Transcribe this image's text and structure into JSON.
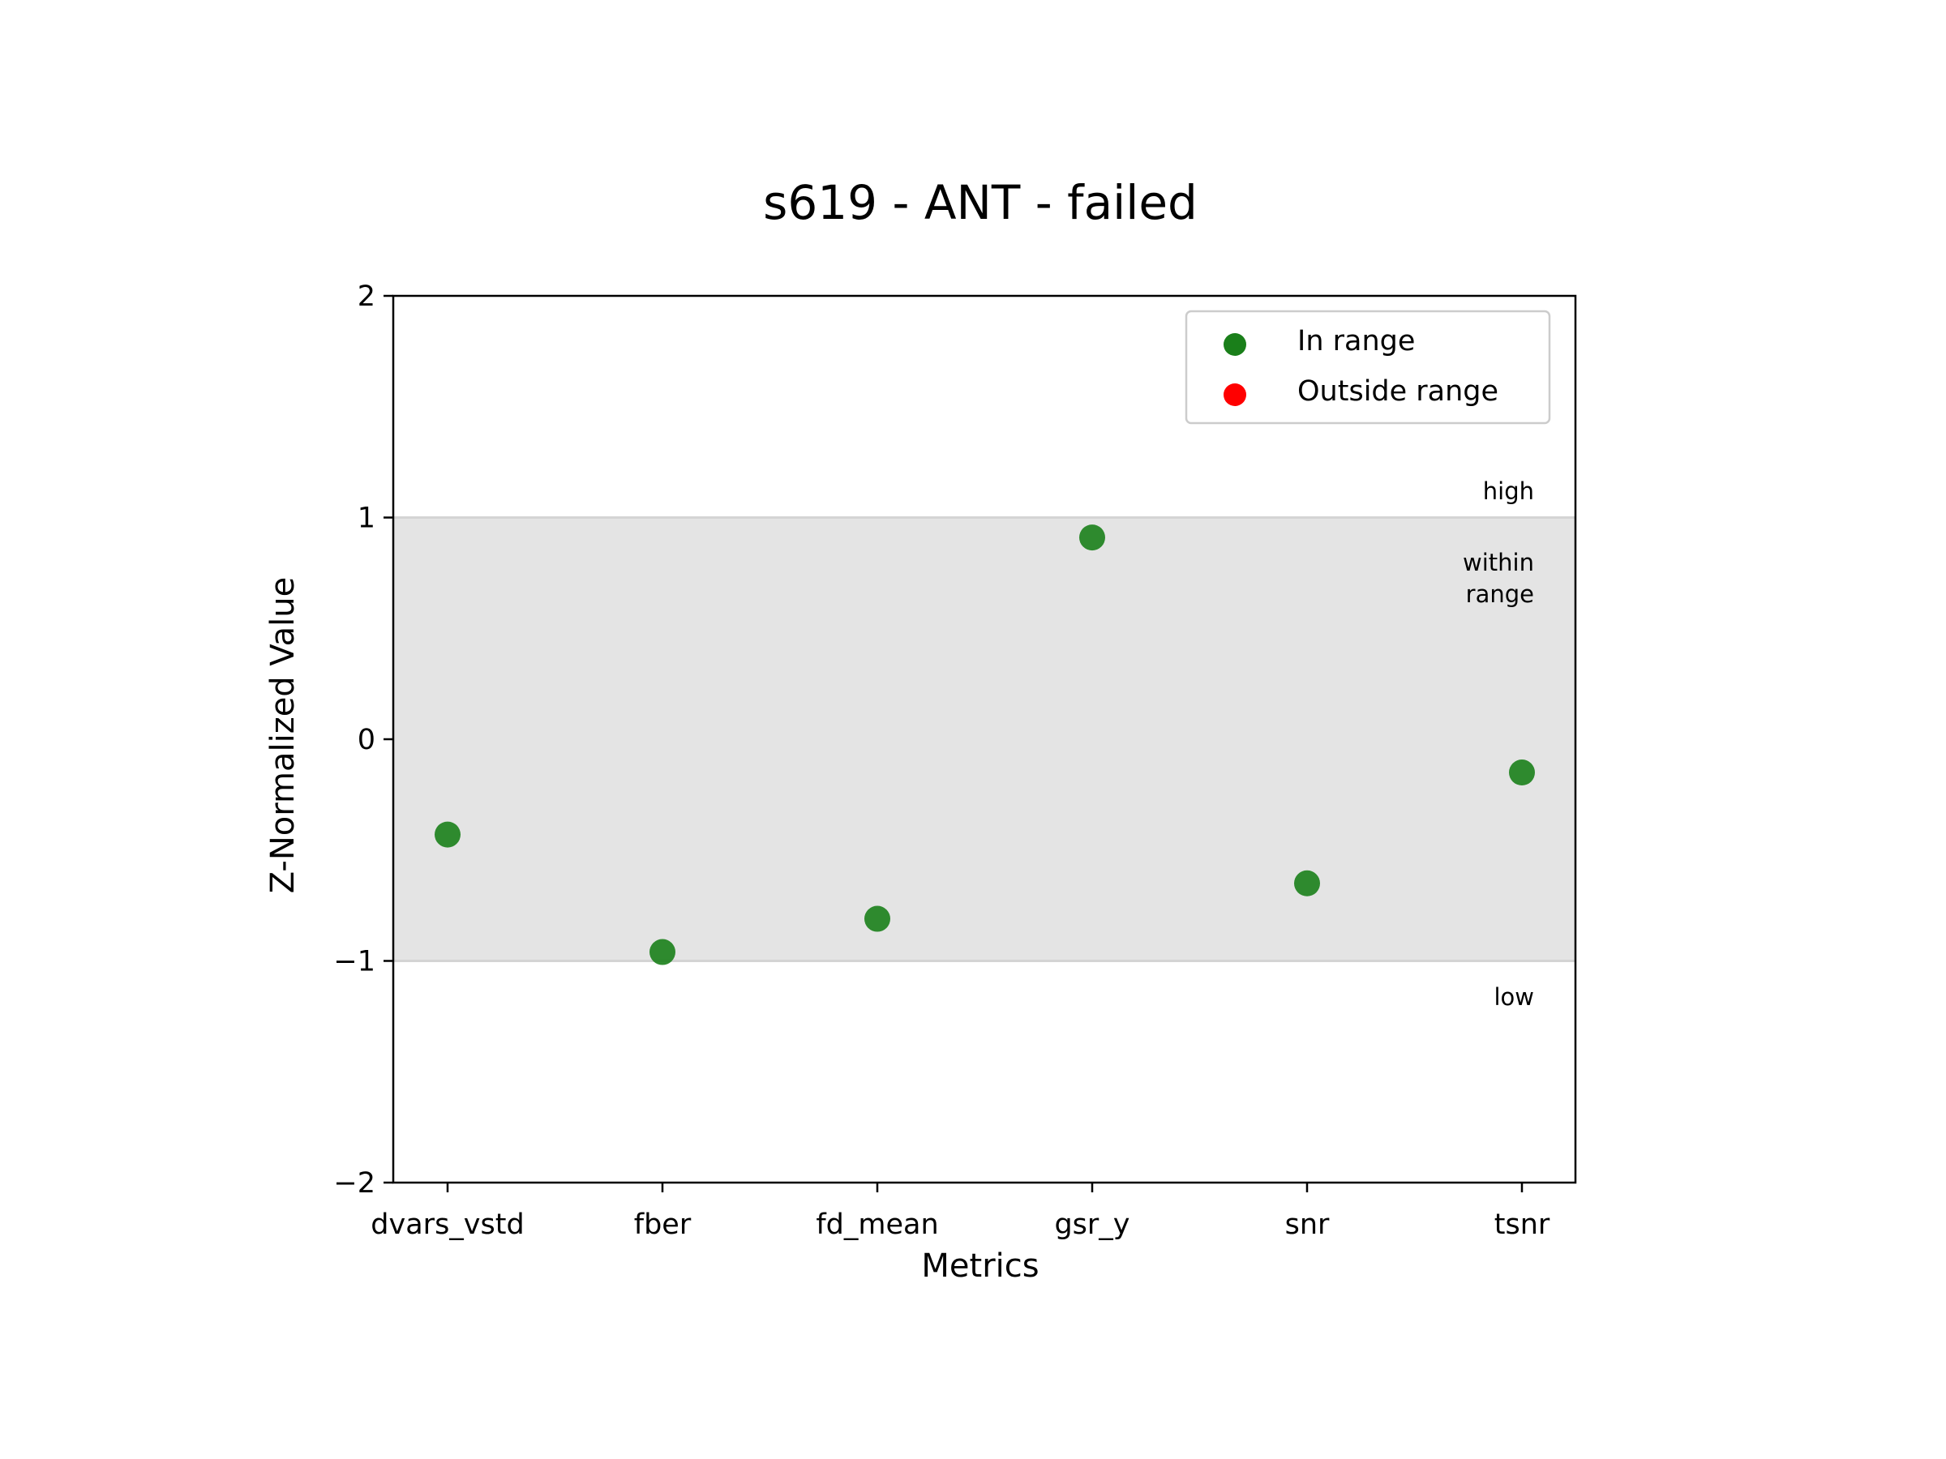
{
  "chart_data": {
    "type": "scatter",
    "title": "s619 - ANT - failed",
    "xlabel": "Metrics",
    "ylabel": "Z-Normalized Value",
    "categories": [
      "dvars_vstd",
      "fber",
      "fd_mean",
      "gsr_y",
      "snr",
      "tsnr"
    ],
    "values": [
      -0.43,
      -0.96,
      -0.81,
      0.91,
      -0.65,
      -0.15
    ],
    "ylim": [
      -2,
      2
    ],
    "yticks": [
      {
        "value": 2,
        "label": "2"
      },
      {
        "value": 1,
        "label": "1"
      },
      {
        "value": 0,
        "label": "0"
      },
      {
        "value": -1,
        "label": "−1"
      },
      {
        "value": -2,
        "label": "−2"
      }
    ],
    "range_band": [
      -1,
      1
    ],
    "series": [
      {
        "name": "In range",
        "color": "#1a7f1a",
        "status": "in"
      },
      {
        "name": "Outside range",
        "color": "#ff0000",
        "status": "out"
      }
    ],
    "annotations": {
      "high": "high",
      "within_line1": "within",
      "within_line2": "range",
      "low": "low"
    },
    "legend_position": "top-right",
    "grid": false
  }
}
